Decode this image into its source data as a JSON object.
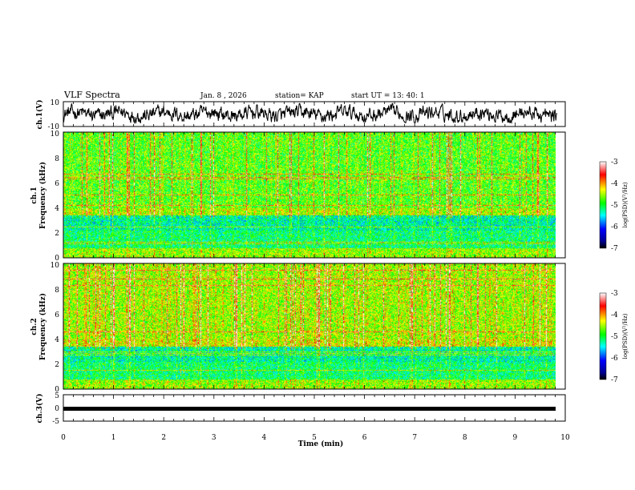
{
  "header": {
    "title": "VLF Spectra",
    "date": "Jan. 8 , 2026",
    "station": "station= KAP",
    "start": "start UT = 13: 40: 1"
  },
  "chart_data": [
    {
      "type": "line",
      "panel": "ch1-waveform",
      "ylabel": "ch.1(V)",
      "yticks": [
        "10",
        "-10"
      ],
      "ylim": [
        -10,
        10
      ],
      "xlim": [
        0,
        10
      ],
      "description_of_series": "noisy waveform oscillating roughly between -6 and +8 V",
      "series": [
        {
          "name": "ch.1",
          "x_range": [
            0,
            9.83
          ],
          "y_range": [
            -6,
            8
          ]
        }
      ]
    },
    {
      "type": "heatmap",
      "panel": "ch1-spectrogram",
      "ylabel": "ch.1\nFrequency (kHz)",
      "ylabel_line1": "ch.1",
      "ylabel_line2": "Frequency (kHz)",
      "yticks": [
        "10",
        "8",
        "6",
        "4",
        "2",
        "0"
      ],
      "ylim": [
        0,
        10
      ],
      "xlim": [
        0,
        10
      ],
      "colorbar": {
        "label": "log(PSD)(V²/Hz)",
        "ticks": [
          "-3",
          "-4",
          "-5",
          "-6",
          "-7"
        ],
        "range": [
          -7,
          -3
        ],
        "colors": [
          "#000080",
          "#0000ff",
          "#00ffff",
          "#00ff00",
          "#ffff00",
          "#ff0000",
          "#ffffff"
        ]
      }
    },
    {
      "type": "heatmap",
      "panel": "ch2-spectrogram",
      "ylabel_line1": "ch.2",
      "ylabel_line2": "Frequency (kHz)",
      "yticks": [
        "10",
        "8",
        "6",
        "4",
        "2",
        "0"
      ],
      "ylim": [
        0,
        10
      ],
      "xlim": [
        0,
        10
      ],
      "colorbar": {
        "label": "log(PSD)(V²/Hz)",
        "ticks": [
          "-3",
          "-4",
          "-5",
          "-6",
          "-7"
        ],
        "range": [
          -7,
          -3
        ]
      }
    },
    {
      "type": "line",
      "panel": "ch3-waveform",
      "ylabel": "ch.3(V)",
      "yticks": [
        "5",
        "0",
        "-5"
      ],
      "ylim": [
        -5,
        5
      ],
      "xlim": [
        0,
        10
      ],
      "series": [
        {
          "name": "ch.3",
          "x_range": [
            0,
            9.83
          ],
          "y_value": 0
        }
      ]
    }
  ],
  "xaxis": {
    "label": "Time (min)",
    "ticks": [
      "0",
      "1",
      "2",
      "3",
      "4",
      "5",
      "6",
      "7",
      "8",
      "9",
      "10"
    ]
  },
  "colors": {
    "line": "#000000",
    "background": "#ffffff"
  }
}
